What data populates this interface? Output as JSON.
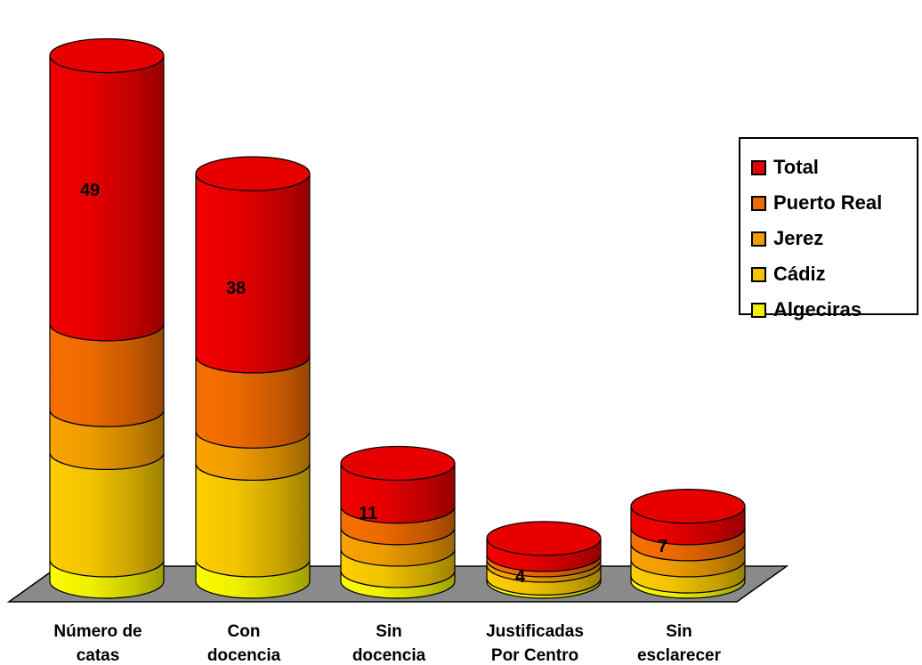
{
  "chart_data": {
    "type": "bar",
    "subtype": "stacked-3d-cylinder",
    "title": "",
    "xlabel": "",
    "ylabel": "",
    "categories": [
      [
        "Número de",
        "catas"
      ],
      [
        "Con",
        "docencia"
      ],
      [
        "Sin",
        "docencia"
      ],
      [
        "Justificadas",
        "Por Centro"
      ],
      [
        "Sin",
        "esclarecer"
      ]
    ],
    "totals_labeled": [
      "49",
      "38",
      "11",
      "4",
      "7"
    ],
    "series": [
      {
        "name": "Algeciras",
        "color": "#f0f000",
        "values": [
          2,
          2,
          1,
          0.3,
          0.5
        ]
      },
      {
        "name": "Cádiz",
        "color": "#f2c400",
        "values": [
          10,
          9,
          2,
          1.2,
          1.5
        ]
      },
      {
        "name": "Jerez",
        "color": "#ee9c00",
        "values": [
          4,
          3,
          2,
          0.5,
          1.5
        ]
      },
      {
        "name": "Puerto Real",
        "color": "#ec6a00",
        "values": [
          8,
          7,
          2,
          0.5,
          1.5
        ]
      },
      {
        "name": "Total",
        "color": "#e60000",
        "values": [
          25,
          17,
          4,
          1.5,
          2
        ]
      }
    ],
    "ylim": [
      0,
      49
    ],
    "grid": false,
    "legend_position": "right"
  }
}
